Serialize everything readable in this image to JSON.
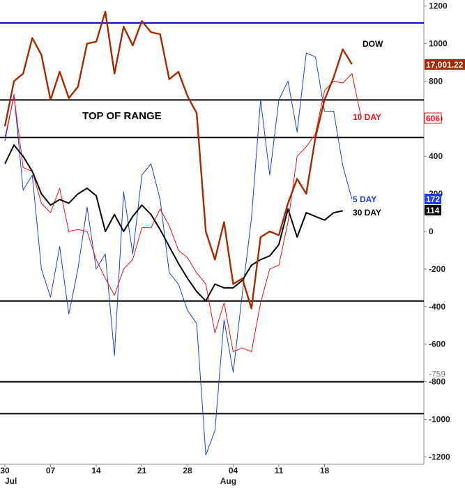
{
  "chart_data": {
    "type": "line",
    "ylim": [
      -1250,
      1250
    ],
    "y_ticks": [
      1200,
      1000,
      800,
      600,
      400,
      200,
      0,
      -200,
      -400,
      -600,
      -800,
      -1000,
      -1200
    ],
    "x_ticks": [
      {
        "i": 0,
        "label": "30"
      },
      {
        "i": 5,
        "label": "07"
      },
      {
        "i": 10,
        "label": "14"
      },
      {
        "i": 15,
        "label": "21"
      },
      {
        "i": 20,
        "label": "28"
      },
      {
        "i": 25,
        "label": "04"
      },
      {
        "i": 30,
        "label": "11"
      },
      {
        "i": 35,
        "label": "18"
      }
    ],
    "month_labels": [
      {
        "i": 0,
        "label": "Jul"
      },
      {
        "i": 24,
        "label": "Aug"
      }
    ],
    "horizontal_lines": [
      {
        "value": 1110,
        "color": "#0000cc"
      },
      {
        "value": 700,
        "color": "#000000"
      },
      {
        "value": 500,
        "color": "#000000"
      },
      {
        "value": -370,
        "color": "#000000"
      },
      {
        "value": -800,
        "color": "#000000"
      },
      {
        "value": -970,
        "color": "#000000"
      }
    ],
    "annotation": "TOP OF RANGE",
    "extra_axis_label": "-759",
    "series": [
      {
        "name": "DOW",
        "color": "#a52a00",
        "last_value_tag": "17,001.22",
        "values": [
          560,
          800,
          840,
          1030,
          940,
          700,
          850,
          710,
          770,
          1000,
          1010,
          1170,
          840,
          1090,
          990,
          1120,
          1060,
          1050,
          810,
          850,
          720,
          630,
          0,
          -150,
          50,
          -280,
          -250,
          -410,
          -30,
          0,
          -20,
          150,
          280,
          200,
          500,
          700,
          820,
          970,
          890
        ]
      },
      {
        "name": "10 DAY",
        "color": "#ee1111",
        "last_value_tag": "606",
        "values": [
          500,
          720,
          340,
          320,
          150,
          100,
          230,
          0,
          10,
          0,
          -150,
          -250,
          -340,
          -200,
          -150,
          20,
          20,
          120,
          30,
          -100,
          -140,
          -220,
          -280,
          -540,
          -380,
          -640,
          -620,
          -640,
          -380,
          -200,
          -180,
          50,
          400,
          450,
          520,
          750,
          800,
          790,
          840,
          610
        ]
      },
      {
        "name": "5 DAY",
        "color": "#1c3cde",
        "last_value_tag": "172",
        "values": [
          480,
          730,
          220,
          300,
          -200,
          -350,
          -80,
          -440,
          -200,
          130,
          -200,
          -120,
          -660,
          210,
          -120,
          300,
          360,
          170,
          -220,
          -280,
          -420,
          -490,
          -1190,
          -1060,
          -470,
          -750,
          -330,
          70,
          700,
          300,
          700,
          800,
          530,
          950,
          930,
          640,
          640,
          350,
          172
        ]
      },
      {
        "name": "30 DAY",
        "color": "#000000",
        "last_value_tag": "114",
        "values": [
          360,
          460,
          400,
          320,
          200,
          140,
          170,
          150,
          200,
          230,
          190,
          0,
          90,
          0,
          80,
          140,
          90,
          10,
          -80,
          -170,
          -250,
          -320,
          -370,
          -280,
          -300,
          -300,
          -260,
          -180,
          -150,
          -130,
          -70,
          120,
          -30,
          100,
          80,
          60,
          100,
          110
        ]
      }
    ]
  }
}
